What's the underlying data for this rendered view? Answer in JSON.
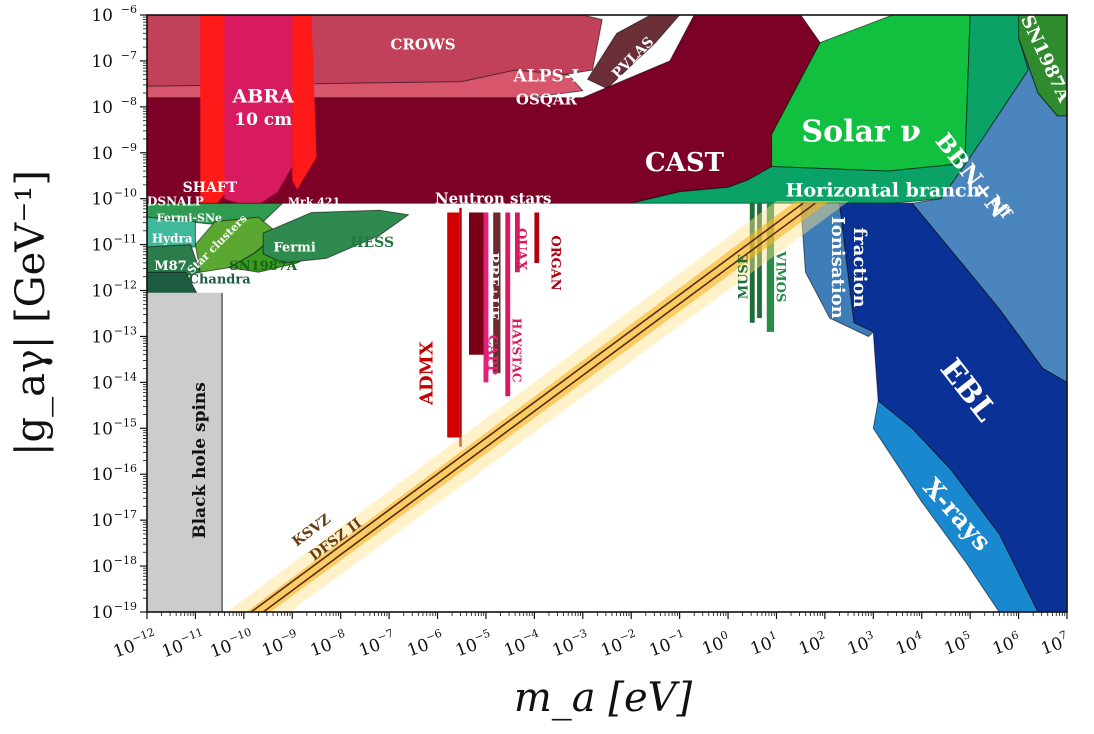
{
  "chart_data": {
    "type": "area",
    "xlabel": "m_a [eV]",
    "ylabel": "|g_aγ| [GeV⁻¹]",
    "xscale": "log",
    "yscale": "log",
    "xlim": [
      1e-12,
      10000000.0
    ],
    "ylim": [
      1e-19,
      1e-06
    ],
    "grid": false,
    "x_ticks": [
      "10",
      "10",
      "10",
      "10",
      "10",
      "10",
      "10",
      "10",
      "10",
      "10",
      "10",
      "10",
      "10",
      "10",
      "10",
      "10",
      "10",
      "10",
      "10",
      "10"
    ],
    "x_tick_exponents": [
      "−12",
      "−11",
      "−10",
      "−9",
      "−8",
      "−7",
      "−6",
      "−5",
      "−4",
      "−3",
      "−2",
      "−1",
      "0",
      "1",
      "2",
      "3",
      "4",
      "5",
      "6",
      "7"
    ],
    "y_ticks": [
      "10",
      "10",
      "10",
      "10",
      "10",
      "10",
      "10",
      "10",
      "10",
      "10",
      "10",
      "10",
      "10",
      "10"
    ],
    "y_tick_exponents": [
      "−6",
      "−7",
      "−8",
      "−9",
      "−10",
      "−11",
      "−12",
      "−13",
      "−14",
      "−15",
      "−16",
      "−17",
      "−18",
      "−19"
    ],
    "models": [
      {
        "name": "KSVZ",
        "color": "#5a2a14"
      },
      {
        "name": "DFSZ II",
        "color": "#5a2a14"
      }
    ],
    "regions": [
      {
        "name": "CROWS",
        "color": "#c2415a",
        "label_color": "#ffffff"
      },
      {
        "name": "ALPS-I",
        "color": "#c2415a",
        "label_color": "#ffffff"
      },
      {
        "name": "PVLAS",
        "color": "#6b2f38",
        "label_color": "#ffffff"
      },
      {
        "name": "OSQAR",
        "color": "#7a0f27",
        "label_color": "#ffffff"
      },
      {
        "name": "ABRA",
        "color": "#d81b60",
        "label_color": "#ffffff"
      },
      {
        "name": "10 cm",
        "color": "#d81b60",
        "label_color": "#ffffff"
      },
      {
        "name": "SHAFT",
        "color": "#ff1a1a",
        "label_color": "#ffffff"
      },
      {
        "name": "CAST",
        "color": "#7d0026",
        "label_color": "#ffffff"
      },
      {
        "name": "DSNALP",
        "color": "#7d0026",
        "label_color": "#ffffff"
      },
      {
        "name": "Mrk 421",
        "color": "#7d0026",
        "label_color": "#ffffff"
      },
      {
        "name": "Neutron stars",
        "color": "#7d0026",
        "label_color": "#ffffff"
      },
      {
        "name": "Solar ν",
        "color": "#12c040",
        "label_color": "#ffffff"
      },
      {
        "name": "Horizontal branch",
        "color": "#0aa266",
        "label_color": "#ffffff"
      },
      {
        "name": "SN1987A",
        "color": "#2e8b2e",
        "label_color": "#ffffff"
      },
      {
        "name": "BBN+N",
        "color": "#4a86bd",
        "label_color": "#ffffff"
      },
      {
        "name": "eff",
        "color": "#4a86bd",
        "label_color": "#ffffff"
      },
      {
        "name": "EBL",
        "color": "#0a3296",
        "label_color": "#ffffff"
      },
      {
        "name": "X-rays",
        "color": "#1a88cf",
        "label_color": "#ffffff"
      },
      {
        "name": "Ionisation",
        "color": "#3e7db8",
        "label_color": "#ffffff"
      },
      {
        "name": "fraction",
        "color": "#3e7db8",
        "label_color": "#ffffff"
      },
      {
        "name": "Fermi-SNe",
        "color": "#2f9a50",
        "label_color": "#ffffff"
      },
      {
        "name": "Hydra",
        "color": "#40b89a",
        "label_color": "#ffffff"
      },
      {
        "name": "M87",
        "color": "#2a7d4a",
        "label_color": "#ffffff"
      },
      {
        "name": "Chandra",
        "color": "#1c5c40",
        "label_color": "#1c5c40"
      },
      {
        "name": "Star clusters",
        "color": "#5aa832",
        "label_color": "#ffffff"
      },
      {
        "name": "SN1987A",
        "color": "#3a9a22",
        "label_color": "#166616"
      },
      {
        "name": "Fermi",
        "color": "#2f8a50",
        "label_color": "#ffffff"
      },
      {
        "name": "HESS",
        "color": "#2f8a50",
        "label_color": "#1f7a3e"
      },
      {
        "name": "ADMX",
        "color": "#d00000",
        "label_color": "#c40000"
      },
      {
        "name": "RBF+UF",
        "color": "#7a0018",
        "label_color": "#ffffff"
      },
      {
        "name": "CAPP",
        "color": "#e0207a",
        "label_color": "#e0207a"
      },
      {
        "name": "HAYSTAC",
        "color": "#d81b60",
        "label_color": "#d81b60"
      },
      {
        "name": "QUAX",
        "color": "#d81b60",
        "label_color": "#d81b60"
      },
      {
        "name": "ORGAN",
        "color": "#b00010",
        "label_color": "#b00010"
      },
      {
        "name": "MUSE",
        "color": "#1e6e3a",
        "label_color": "#1e6e3a"
      },
      {
        "name": "VIMOS",
        "color": "#2a8a48",
        "label_color": "#2a8a48"
      },
      {
        "name": "Black hole spins",
        "color": "#cccccc",
        "label_color": "#111111"
      }
    ]
  }
}
